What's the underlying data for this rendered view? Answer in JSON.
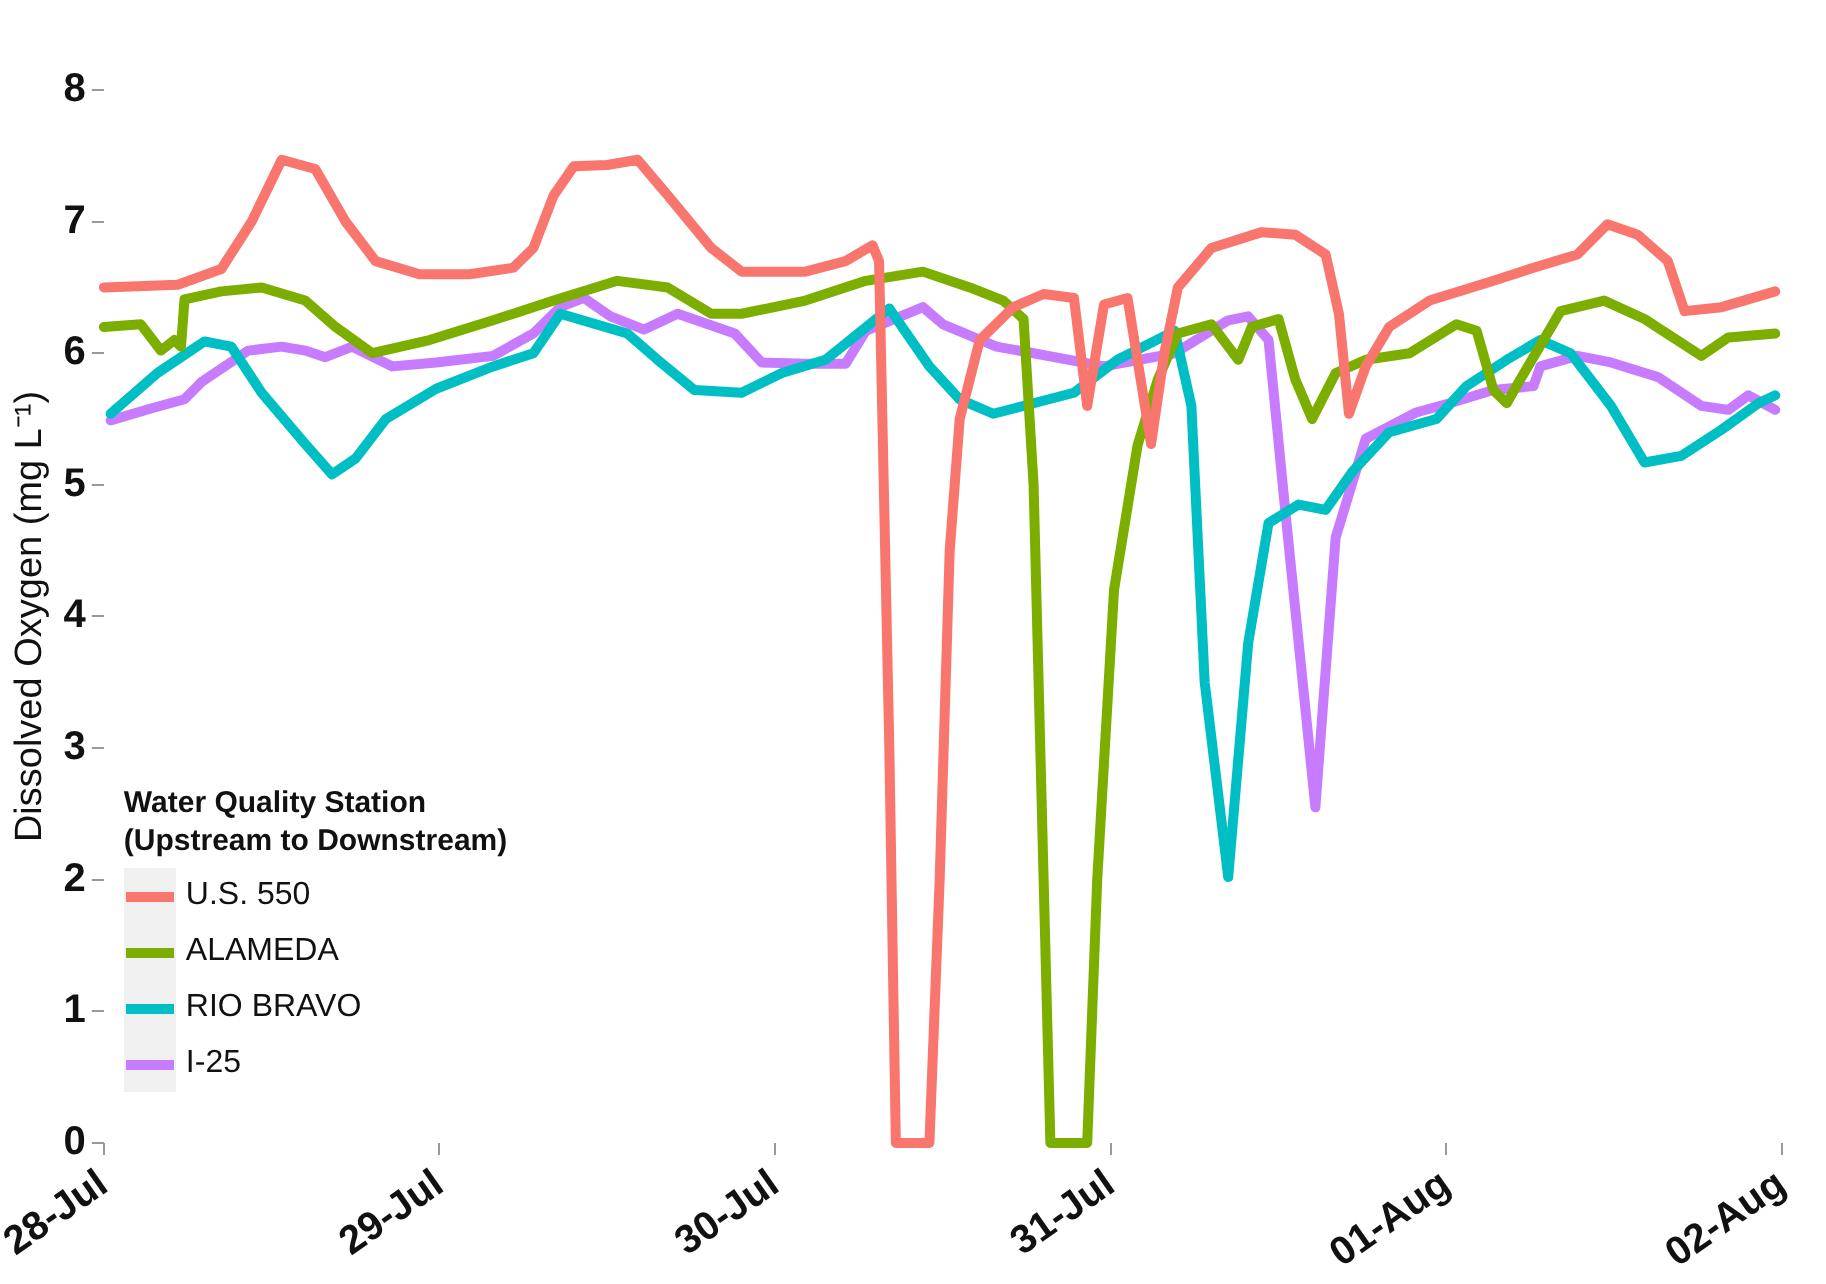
{
  "chart_data": {
    "type": "line",
    "ylabel": "Dissolved Oxygen (mg L⁻¹)",
    "legend_title": "Water Quality Station\n(Upstream to Downstream)",
    "legend": "bottom left",
    "grid": false,
    "marker": "none",
    "line_style": "solid",
    "xlim": [
      "--07-28",
      "--08-02"
    ],
    "xticks": [
      {
        "value": "--07-28",
        "label": "28-Jul"
      },
      {
        "value": "--07-29",
        "label": "29-Jul"
      },
      {
        "value": "--07-30",
        "label": "30-Jul"
      },
      {
        "value": "--07-31",
        "label": "31-Jul"
      },
      {
        "value": "--08-01",
        "label": "01-Aug"
      },
      {
        "value": "--08-02",
        "label": "02-Aug"
      }
    ],
    "ylim": [
      0,
      8
    ],
    "yticks": [
      0,
      1,
      2,
      3,
      4,
      5,
      6,
      7,
      8
    ],
    "series": [
      {
        "name": "U.S. 550",
        "color": "#f8766d",
        "x": [
          "--07-28T00:00",
          "--07-28T05:17",
          "--07-28T08:24",
          "--07-28T10:34",
          "--07-28T12:43",
          "--07-28T15:07",
          "--07-28T17:17",
          "--07-28T19:26",
          "--07-28T22:34",
          "--07-29T02:10",
          "--07-29T05:17",
          "--07-29T06:43",
          "--07-29T08:10",
          "--07-29T09:36",
          "--07-29T12:00",
          "--07-29T14:10",
          "--07-29T16:19",
          "--07-29T19:26",
          "--07-29T21:36",
          "--07-30T02:10",
          "--07-30T05:02",
          "--07-30T06:58",
          "--07-30T07:26",
          "--07-30T08:10",
          "--07-30T08:38",
          "--07-30T11:02",
          "--07-30T11:46",
          "--07-30T12:29",
          "--07-30T13:12",
          "--07-30T14:38",
          "--07-30T17:02",
          "--07-30T19:12",
          "--07-30T21:22",
          "--07-30T22:19",
          "--07-30T23:31",
          "--07-31T01:12",
          "--07-31T02:53",
          "--07-31T03:50",
          "--07-31T04:48",
          "--07-31T07:12",
          "--07-31T10:48",
          "--07-31T13:12",
          "--07-31T15:22",
          "--07-31T16:19",
          "--07-31T17:02",
          "--07-31T18:14",
          "--07-31T19:55",
          "--07-31T22:48",
          "--08-01T03:22",
          "--08-01T06:14",
          "--08-01T09:22",
          "--08-01T11:31",
          "--08-01T13:41",
          "--08-01T15:50",
          "--08-01T17:02",
          "--08-01T19:41",
          "--08-01T23:31"
        ],
        "values": [
          6.5,
          6.52,
          6.64,
          7.0,
          7.47,
          7.4,
          7.0,
          6.7,
          6.6,
          6.6,
          6.65,
          6.8,
          7.2,
          7.42,
          7.43,
          7.47,
          7.2,
          6.8,
          6.62,
          6.62,
          6.7,
          6.82,
          6.7,
          3.0,
          0,
          0,
          2.0,
          4.5,
          5.5,
          6.1,
          6.35,
          6.45,
          6.42,
          5.6,
          6.37,
          6.42,
          5.31,
          6.0,
          6.5,
          6.8,
          6.92,
          6.9,
          6.75,
          6.3,
          5.54,
          5.9,
          6.2,
          6.4,
          6.55,
          6.65,
          6.75,
          6.98,
          6.9,
          6.7,
          6.32,
          6.35,
          6.47
        ]
      },
      {
        "name": "ALAMEDA",
        "color": "#7cae00",
        "x": [
          "--07-28T00:00",
          "--07-28T02:38",
          "--07-28T04:05",
          "--07-28T05:02",
          "--07-28T05:31",
          "--07-28T05:46",
          "--07-28T08:24",
          "--07-28T11:17",
          "--07-28T14:24",
          "--07-28T16:34",
          "--07-28T19:12",
          "--07-28T23:17",
          "--07-29T03:50",
          "--07-29T08:10",
          "--07-29T12:43",
          "--07-29T16:19",
          "--07-29T19:26",
          "--07-29T21:36",
          "--07-30T02:10",
          "--07-30T06:29",
          "--07-30T10:34",
          "--07-30T13:55",
          "--07-30T16:19",
          "--07-30T17:46",
          "--07-30T18:29",
          "--07-30T19:12",
          "--07-30T19:41",
          "--07-30T22:19",
          "--07-30T23:02",
          "--07-31T00:14",
          "--07-31T01:55",
          "--07-31T03:22",
          "--07-31T04:48",
          "--07-31T07:12",
          "--07-31T09:07",
          "--07-31T10:05",
          "--07-31T12:00",
          "--07-31T13:12",
          "--07-31T14:24",
          "--07-31T16:05",
          "--07-31T18:14",
          "--07-31T21:22",
          "--08-01T00:43",
          "--08-01T02:10",
          "--08-01T03:22",
          "--08-01T04:19",
          "--08-01T05:17",
          "--08-01T08:10",
          "--08-01T11:17",
          "--08-01T14:10",
          "--08-01T18:14",
          "--08-01T20:10",
          "--08-01T23:31"
        ],
        "values": [
          6.2,
          6.22,
          6.02,
          6.1,
          6.05,
          6.41,
          6.47,
          6.5,
          6.4,
          6.2,
          6.0,
          6.1,
          6.25,
          6.4,
          6.55,
          6.5,
          6.3,
          6.3,
          6.4,
          6.55,
          6.62,
          6.5,
          6.4,
          6.26,
          5.0,
          2.0,
          0,
          0,
          2.0,
          4.2,
          5.3,
          5.8,
          6.15,
          6.22,
          5.95,
          6.2,
          6.26,
          5.8,
          5.5,
          5.85,
          5.95,
          6.0,
          6.22,
          6.17,
          5.72,
          5.62,
          5.8,
          6.32,
          6.4,
          6.26,
          5.98,
          6.12,
          6.15
        ]
      },
      {
        "name": "RIO BRAVO",
        "color": "#00bfc4",
        "x": [
          "--07-28T00:29",
          "--07-28T03:50",
          "--07-28T07:12",
          "--07-28T09:07",
          "--07-28T11:17",
          "--07-28T14:24",
          "--07-28T16:19",
          "--07-28T18:00",
          "--07-28T20:10",
          "--07-28T23:46",
          "--07-29T03:50",
          "--07-29T06:43",
          "--07-29T08:38",
          "--07-29T13:26",
          "--07-29T15:36",
          "--07-29T18:14",
          "--07-29T21:36",
          "--07-30T00:29",
          "--07-30T03:36",
          "--07-30T08:10",
          "--07-30T11:02",
          "--07-30T13:12",
          "--07-30T15:36",
          "--07-30T18:29",
          "--07-30T21:22",
          "--07-31T00:29",
          "--07-31T04:34",
          "--07-31T05:46",
          "--07-31T06:43",
          "--07-31T08:24",
          "--07-31T09:50",
          "--07-31T11:17",
          "--07-31T13:26",
          "--07-31T15:22",
          "--07-31T17:17",
          "--07-31T19:55",
          "--07-31T23:17",
          "--08-01T01:26",
          "--08-01T04:19",
          "--08-01T06:43",
          "--08-01T08:53",
          "--08-01T11:46",
          "--08-01T14:10",
          "--08-01T16:48",
          "--08-01T19:41",
          "--08-01T22:19",
          "--08-01T23:31"
        ],
        "values": [
          5.54,
          5.85,
          6.09,
          6.05,
          5.7,
          5.31,
          5.08,
          5.2,
          5.5,
          5.73,
          5.9,
          6.0,
          6.3,
          6.15,
          5.95,
          5.72,
          5.7,
          5.85,
          5.95,
          6.34,
          5.9,
          5.65,
          5.54,
          5.62,
          5.7,
          5.95,
          6.17,
          5.6,
          3.5,
          2.02,
          3.8,
          4.71,
          4.85,
          4.81,
          5.1,
          5.4,
          5.5,
          5.75,
          5.95,
          6.1,
          6.0,
          5.6,
          5.17,
          5.22,
          5.42,
          5.62,
          5.68
        ]
      },
      {
        "name": "I-25",
        "color": "#c77cff",
        "x": [
          "--07-28T00:29",
          "--07-28T03:22",
          "--07-28T05:46",
          "--07-28T06:58",
          "--07-28T10:19",
          "--07-28T12:43",
          "--07-28T14:24",
          "--07-28T15:50",
          "--07-28T17:46",
          "--07-28T20:38",
          "--07-28T23:46",
          "--07-29T03:50",
          "--07-29T06:43",
          "--07-29T08:38",
          "--07-29T10:19",
          "--07-29T12:14",
          "--07-29T14:38",
          "--07-29T17:02",
          "--07-29T21:07",
          "--07-29T23:02",
          "--07-30T02:10",
          "--07-30T05:02",
          "--07-30T06:29",
          "--07-30T10:34",
          "--07-30T12:00",
          "--07-30T15:50",
          "--07-30T18:29",
          "--07-30T23:31",
          "--07-31T04:34",
          "--07-31T08:24",
          "--07-31T09:50",
          "--07-31T11:17",
          "--07-31T12:29",
          "--07-31T14:38",
          "--07-31T16:05",
          "--07-31T18:14",
          "--07-31T21:50",
          "--08-01T00:14",
          "--08-01T03:22",
          "--08-01T06:14",
          "--08-01T06:43",
          "--08-01T09:22",
          "--08-01T11:46",
          "--08-01T15:07",
          "--08-01T18:14",
          "--08-01T20:10",
          "--08-01T21:36",
          "--08-01T23:31"
        ],
        "values": [
          5.49,
          5.58,
          5.65,
          5.78,
          6.02,
          6.05,
          6.02,
          5.97,
          6.05,
          5.9,
          5.93,
          5.98,
          6.15,
          6.35,
          6.42,
          6.28,
          6.18,
          6.3,
          6.15,
          5.93,
          5.92,
          5.92,
          6.17,
          6.35,
          6.22,
          6.05,
          6.0,
          5.9,
          6.0,
          6.25,
          6.28,
          6.1,
          4.8,
          2.55,
          4.6,
          5.35,
          5.55,
          5.62,
          5.72,
          5.75,
          5.9,
          5.98,
          5.93,
          5.82,
          5.6,
          5.57,
          5.68,
          5.57
        ]
      }
    ]
  }
}
